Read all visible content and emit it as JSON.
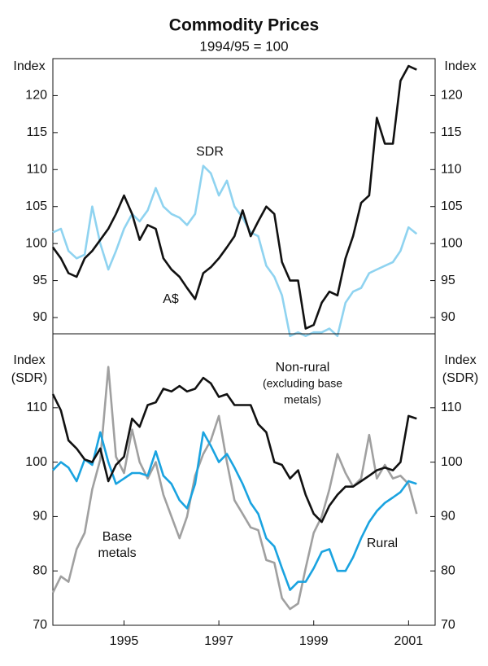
{
  "chart_data": [
    {
      "type": "line",
      "title": "Commodity Prices",
      "subtitle": "1994/95 = 100",
      "ylabel": [
        "Index"
      ],
      "x": [
        1994,
        1994.17,
        1994.33,
        1994.5,
        1994.67,
        1994.83,
        1995,
        1995.17,
        1995.33,
        1995.5,
        1995.67,
        1995.83,
        1996,
        1996.17,
        1996.33,
        1996.5,
        1996.67,
        1996.83,
        1997,
        1997.17,
        1997.33,
        1997.5,
        1997.67,
        1997.83,
        1998,
        1998.17,
        1998.33,
        1998.5,
        1998.67,
        1998.83,
        1999,
        1999.17,
        1999.33,
        1999.5,
        1999.67,
        1999.83,
        2000,
        2000.17,
        2000.33,
        2000.5,
        2000.67,
        2000.83,
        2001,
        2001.17,
        2001.33,
        2001.5,
        2001.67
      ],
      "xlim": [
        1994,
        2002.06
      ],
      "ylim": [
        87.8,
        125
      ],
      "yticks": [
        90,
        95,
        100,
        105,
        110,
        115,
        120
      ],
      "series": [
        {
          "name": [
            "SDR"
          ],
          "color": "#8fd3f0",
          "values": [
            101.5,
            102,
            99,
            98,
            98.5,
            105,
            100,
            96.5,
            99,
            102,
            104,
            103,
            104.5,
            107.5,
            105,
            104,
            103.5,
            102.5,
            104,
            110.5,
            109.5,
            106.5,
            108.5,
            105,
            103.5,
            101.5,
            101,
            97,
            95.5,
            93,
            87.5,
            88,
            87.5,
            88,
            88,
            88.5,
            87.5,
            92,
            93.5,
            94,
            96,
            96.5,
            97,
            97.5,
            99,
            102.2,
            101.3
          ]
        },
        {
          "name": [
            "A$"
          ],
          "color": "#111111",
          "values": [
            99.5,
            98,
            96,
            95.5,
            98,
            99,
            100.5,
            102,
            104,
            106.5,
            104,
            100.5,
            102.5,
            102,
            98,
            96.5,
            95.5,
            94,
            92.5,
            96,
            96.8,
            98,
            99.5,
            101,
            104.5,
            101,
            103,
            105,
            104,
            97.5,
            95,
            95,
            88.5,
            89,
            92,
            93.5,
            93,
            98,
            101,
            105.5,
            106.5,
            117,
            113.5,
            113.5,
            122,
            124,
            123.5
          ]
        }
      ]
    },
    {
      "type": "line",
      "ylabel": [
        "Index",
        "(SDR)"
      ],
      "x": [
        1994,
        1994.17,
        1994.33,
        1994.5,
        1994.67,
        1994.83,
        1995,
        1995.17,
        1995.33,
        1995.5,
        1995.67,
        1995.83,
        1996,
        1996.17,
        1996.33,
        1996.5,
        1996.67,
        1996.83,
        1997,
        1997.17,
        1997.33,
        1997.5,
        1997.67,
        1997.83,
        1998,
        1998.17,
        1998.33,
        1998.5,
        1998.67,
        1998.83,
        1999,
        1999.17,
        1999.33,
        1999.5,
        1999.67,
        1999.83,
        2000,
        2000.17,
        2000.33,
        2000.5,
        2000.67,
        2000.83,
        2001,
        2001.17,
        2001.33,
        2001.5,
        2001.67
      ],
      "xlim": [
        1994,
        2002.06
      ],
      "xticks": [
        {
          "value": 1995.5,
          "label": "1995"
        },
        {
          "value": 1997.5,
          "label": "1997"
        },
        {
          "value": 1999.5,
          "label": "1999"
        },
        {
          "value": 2001.5,
          "label": "2001"
        }
      ],
      "ylim": [
        70,
        123.6
      ],
      "yticks": [
        70,
        80,
        90,
        100,
        110
      ],
      "series": [
        {
          "name": [
            "Base",
            "metals"
          ],
          "color": "#a0a0a0",
          "values": [
            76,
            79,
            78,
            84,
            87,
            95,
            100.5,
            117.5,
            101,
            98,
            106,
            100,
            97,
            100,
            94,
            90,
            86,
            90,
            97.5,
            101.5,
            104,
            108.5,
            100,
            93,
            90.5,
            88,
            87.5,
            82,
            81.5,
            75,
            73,
            74,
            80.5,
            87,
            90,
            95,
            101.5,
            98,
            95.5,
            97,
            105,
            97,
            99.5,
            97,
            97.5,
            96,
            90.5
          ]
        },
        {
          "name": [
            "Rural"
          ],
          "color": "#1aa3e0",
          "values": [
            98.5,
            100,
            99,
            96.5,
            100.5,
            99.5,
            105.5,
            100,
            96,
            97,
            98,
            98,
            97.5,
            102,
            97.5,
            96,
            93,
            91.5,
            96,
            105.5,
            103,
            100,
            101.5,
            99,
            96,
            92.5,
            90.5,
            86,
            84.5,
            80.5,
            76.5,
            78,
            78,
            80.5,
            83.5,
            84,
            80,
            80,
            82.5,
            86,
            89,
            91,
            92.5,
            93.5,
            94.5,
            96.5,
            96
          ]
        },
        {
          "name": [
            "Non-rural",
            "(excluding base",
            "metals)"
          ],
          "color": "#111111",
          "values": [
            112.5,
            109.5,
            104,
            102.5,
            100.5,
            100,
            102.5,
            96.5,
            99.5,
            101,
            108,
            106.5,
            110.5,
            111,
            113.5,
            113,
            114,
            113,
            113.5,
            115.5,
            114.5,
            112,
            112.5,
            110.5,
            110.5,
            110.5,
            107,
            105.5,
            100,
            99.5,
            97,
            98.5,
            94,
            90.5,
            89,
            92,
            94,
            95.5,
            95.5,
            96.5,
            97.5,
            98.5,
            99,
            98.5,
            100,
            108.5,
            108
          ]
        }
      ]
    }
  ]
}
